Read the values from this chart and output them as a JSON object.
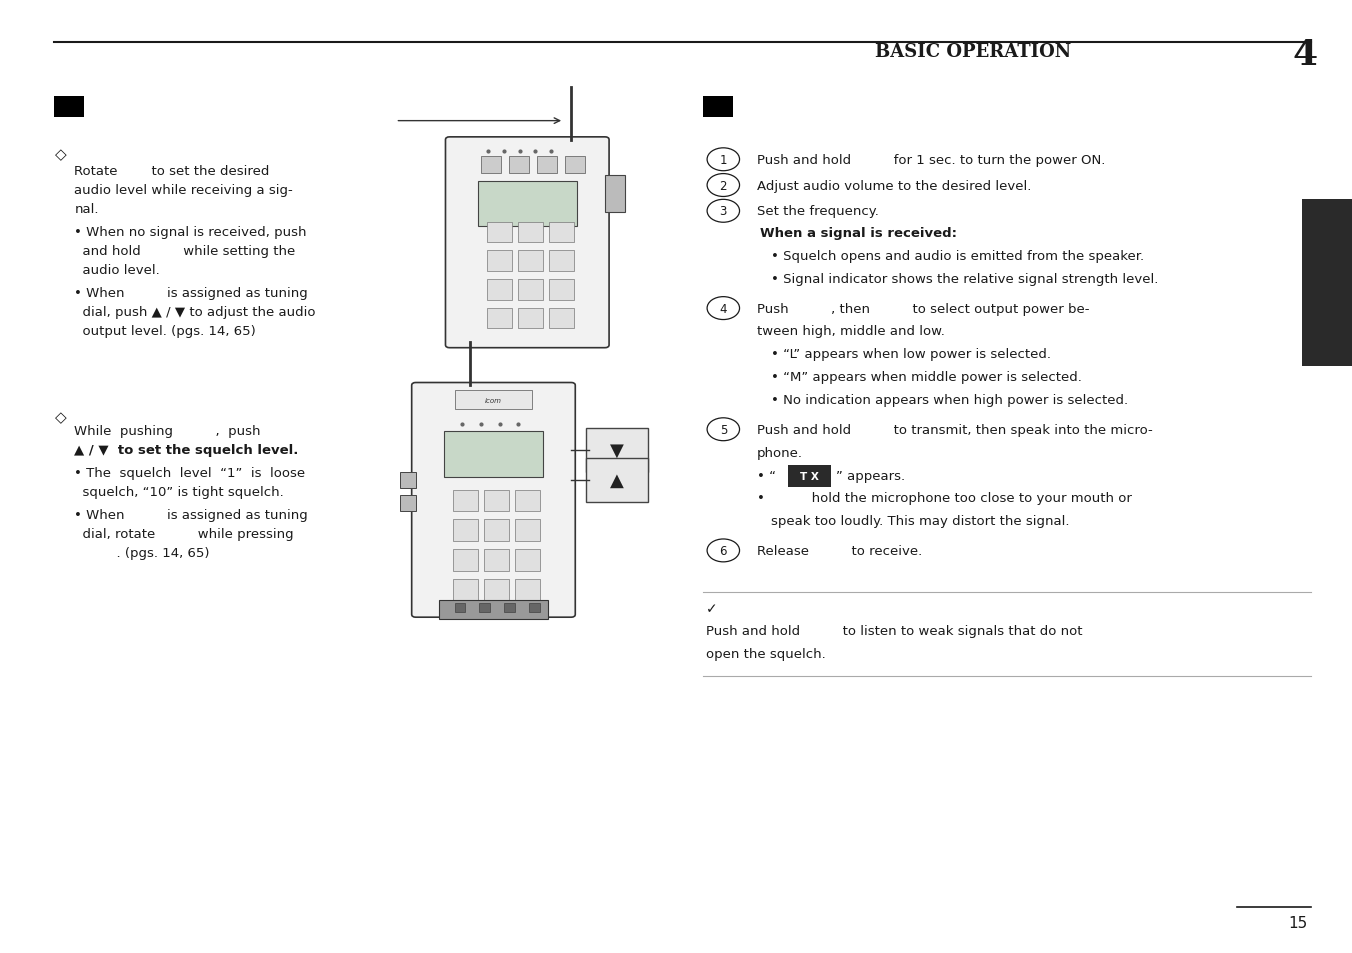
{
  "page_bg": "#ffffff",
  "header_text": "BASIC OPERATION",
  "header_number": "4",
  "page_number": "15",
  "top_line_color": "#1a1a1a",
  "text_color": "#1a1a1a",
  "dark_tab_color": "#2a2a2a",
  "tx_box_color": "#2a2a2a"
}
